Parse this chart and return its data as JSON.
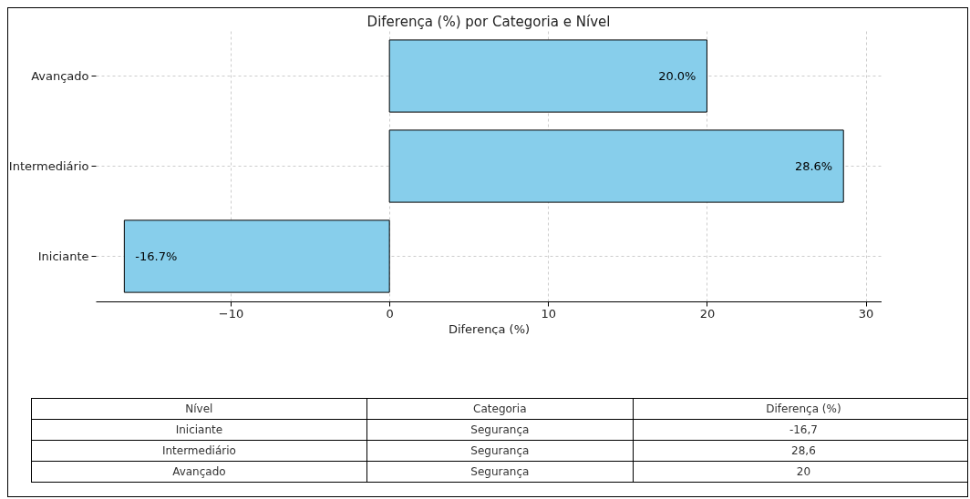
{
  "chart_data": {
    "type": "bar",
    "orientation": "horizontal",
    "title": "Diferença (%) por Categoria e Nível",
    "xlabel": "Diferença (%)",
    "categories": [
      "Avançado",
      "Intermediário",
      "Iniciante"
    ],
    "values": [
      20.0,
      28.6,
      -16.7
    ],
    "value_labels": [
      "20.0%",
      "28.6%",
      "-16.7%"
    ],
    "color": "#87ceeb",
    "xlim": [
      -18.5,
      31
    ],
    "xticks": [
      {
        "value": -10,
        "label": "−10"
      },
      0,
      10,
      20,
      30
    ],
    "grid": true,
    "annotations": [
      "Nível",
      "Categoria",
      "Diferença (%)",
      "Iniciante",
      "Segurança",
      "-16,7",
      "Intermediário",
      "Segurança",
      "28,6",
      "Avançado",
      "Segurança",
      "20"
    ]
  }
}
